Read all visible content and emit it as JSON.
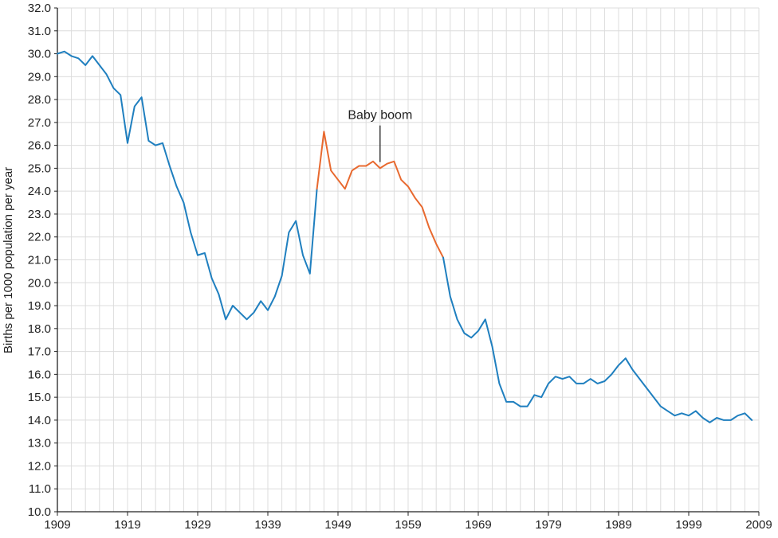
{
  "chart_data": {
    "type": "line",
    "title": "",
    "xlabel": "",
    "ylabel": "Births per 1000 population per year",
    "xlim": [
      1909,
      2009
    ],
    "ylim": [
      10.0,
      32.0
    ],
    "grid": true,
    "x_ticks": [
      1909,
      1919,
      1929,
      1939,
      1949,
      1959,
      1969,
      1979,
      1989,
      1999,
      2009
    ],
    "y_ticks": [
      "10.0",
      "11.0",
      "12.0",
      "13.0",
      "14.0",
      "15.0",
      "16.0",
      "17.0",
      "18.0",
      "19.0",
      "20.0",
      "21.0",
      "22.0",
      "23.0",
      "24.0",
      "25.0",
      "26.0",
      "27.0",
      "28.0",
      "29.0",
      "30.0",
      "31.0",
      "32.0"
    ],
    "series": [
      {
        "color": "#1f7fbf",
        "points": [
          [
            1909,
            30.0
          ],
          [
            1910,
            30.1
          ],
          [
            1911,
            29.9
          ],
          [
            1912,
            29.8
          ],
          [
            1913,
            29.5
          ],
          [
            1914,
            29.9
          ],
          [
            1915,
            29.5
          ],
          [
            1916,
            29.1
          ],
          [
            1917,
            28.5
          ],
          [
            1918,
            28.2
          ],
          [
            1919,
            26.1
          ],
          [
            1920,
            27.7
          ],
          [
            1921,
            28.1
          ],
          [
            1922,
            26.2
          ],
          [
            1923,
            26.0
          ],
          [
            1924,
            26.1
          ],
          [
            1925,
            25.1
          ],
          [
            1926,
            24.2
          ],
          [
            1927,
            23.5
          ],
          [
            1928,
            22.2
          ],
          [
            1929,
            21.2
          ],
          [
            1930,
            21.3
          ],
          [
            1931,
            20.2
          ],
          [
            1932,
            19.5
          ],
          [
            1933,
            18.4
          ],
          [
            1934,
            19.0
          ],
          [
            1935,
            18.7
          ],
          [
            1936,
            18.4
          ],
          [
            1937,
            18.7
          ],
          [
            1938,
            19.2
          ],
          [
            1939,
            18.8
          ],
          [
            1940,
            19.4
          ],
          [
            1941,
            20.3
          ],
          [
            1942,
            22.2
          ],
          [
            1943,
            22.7
          ],
          [
            1944,
            21.2
          ],
          [
            1945,
            20.4
          ],
          [
            1946,
            24.1
          ]
        ]
      },
      {
        "color": "#e8692f",
        "points": [
          [
            1946,
            24.1
          ],
          [
            1947,
            26.6
          ],
          [
            1948,
            24.9
          ],
          [
            1949,
            24.5
          ],
          [
            1950,
            24.1
          ],
          [
            1951,
            24.9
          ],
          [
            1952,
            25.1
          ],
          [
            1953,
            25.1
          ],
          [
            1954,
            25.3
          ],
          [
            1955,
            25.0
          ],
          [
            1956,
            25.2
          ],
          [
            1957,
            25.3
          ],
          [
            1958,
            24.5
          ],
          [
            1959,
            24.2
          ],
          [
            1960,
            23.7
          ],
          [
            1961,
            23.3
          ],
          [
            1962,
            22.4
          ],
          [
            1963,
            21.7
          ],
          [
            1964,
            21.1
          ]
        ]
      },
      {
        "color": "#1f7fbf",
        "points": [
          [
            1964,
            21.1
          ],
          [
            1965,
            19.4
          ],
          [
            1966,
            18.4
          ],
          [
            1967,
            17.8
          ],
          [
            1968,
            17.6
          ],
          [
            1969,
            17.9
          ],
          [
            1970,
            18.4
          ],
          [
            1971,
            17.2
          ],
          [
            1972,
            15.6
          ],
          [
            1973,
            14.8
          ],
          [
            1974,
            14.8
          ],
          [
            1975,
            14.6
          ],
          [
            1976,
            14.6
          ],
          [
            1977,
            15.1
          ],
          [
            1978,
            15.0
          ],
          [
            1979,
            15.6
          ],
          [
            1980,
            15.9
          ],
          [
            1981,
            15.8
          ],
          [
            1982,
            15.9
          ],
          [
            1983,
            15.6
          ],
          [
            1984,
            15.6
          ],
          [
            1985,
            15.8
          ],
          [
            1986,
            15.6
          ],
          [
            1987,
            15.7
          ],
          [
            1988,
            16.0
          ],
          [
            1989,
            16.4
          ],
          [
            1990,
            16.7
          ],
          [
            1991,
            16.2
          ],
          [
            1992,
            15.8
          ],
          [
            1993,
            15.4
          ],
          [
            1994,
            15.0
          ],
          [
            1995,
            14.6
          ],
          [
            1996,
            14.4
          ],
          [
            1997,
            14.2
          ],
          [
            1998,
            14.3
          ],
          [
            1999,
            14.2
          ],
          [
            2000,
            14.4
          ],
          [
            2001,
            14.1
          ],
          [
            2002,
            13.9
          ],
          [
            2003,
            14.1
          ],
          [
            2004,
            14.0
          ],
          [
            2005,
            14.0
          ],
          [
            2006,
            14.2
          ],
          [
            2007,
            14.3
          ],
          [
            2008,
            14.0
          ]
        ]
      }
    ],
    "annotations": [
      {
        "text": "Baby boom",
        "x": 1955,
        "y": 25.2
      }
    ]
  }
}
